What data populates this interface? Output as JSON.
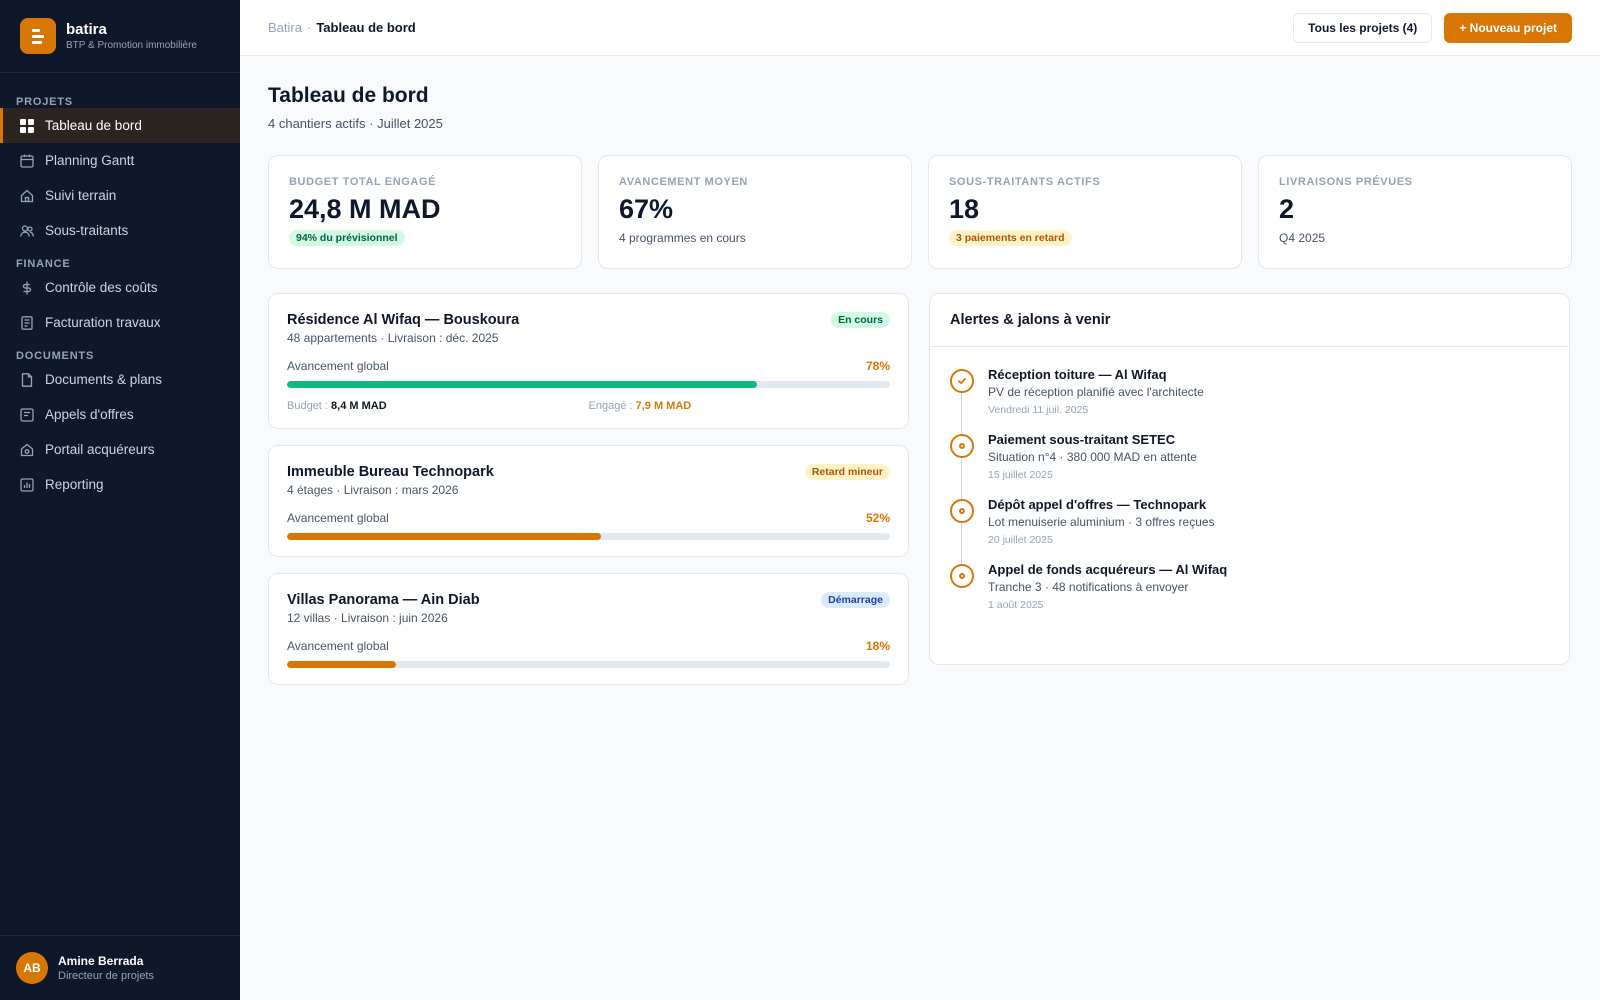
{
  "brand": {
    "name": "batira",
    "tagline": "BTP & Promotion immobilière"
  },
  "sidebar": {
    "sections": [
      {
        "title": "PROJETS",
        "items": [
          {
            "label": "Tableau de bord",
            "icon": "dashboard-icon",
            "active": true
          },
          {
            "label": "Planning Gantt",
            "icon": "calendar-icon"
          },
          {
            "label": "Suivi terrain",
            "icon": "home-icon"
          },
          {
            "label": "Sous-traitants",
            "icon": "users-icon"
          }
        ]
      },
      {
        "title": "FINANCE",
        "items": [
          {
            "label": "Contrôle des coûts",
            "icon": "dollar-icon"
          },
          {
            "label": "Facturation travaux",
            "icon": "invoice-icon"
          }
        ]
      },
      {
        "title": "DOCUMENTS",
        "items": [
          {
            "label": "Documents & plans",
            "icon": "file-icon"
          },
          {
            "label": "Appels d'offres",
            "icon": "tender-icon"
          },
          {
            "label": "Portail acquéreurs",
            "icon": "portal-icon"
          },
          {
            "label": "Reporting",
            "icon": "chart-icon"
          }
        ]
      }
    ]
  },
  "user": {
    "initials": "AB",
    "name": "Amine Berrada",
    "role": "Directeur de projets"
  },
  "header": {
    "breadcrumb_root": "Batira",
    "breadcrumb_sep": "·",
    "breadcrumb_current": "Tableau de bord",
    "all_projects_label": "Tous les projets (4)",
    "new_project_label": "+ Nouveau projet"
  },
  "page": {
    "title": "Tableau de bord",
    "subtitle": "4 chantiers actifs · Juillet 2025"
  },
  "kpis": [
    {
      "label": "BUDGET TOTAL ENGAGÉ",
      "value": "24,8 M MAD",
      "pill": "94% du prévisionnel",
      "pill_color": "#d1fae5"
    },
    {
      "label": "AVANCEMENT MOYEN",
      "value": "67%",
      "sub": "4 programmes en cours"
    },
    {
      "label": "SOUS-TRAITANTS ACTIFS",
      "value": "18",
      "pill": "3 paiements en retard",
      "pill_color": "#fef3c7"
    },
    {
      "label": "LIVRAISONS PRÉVUES",
      "value": "2",
      "sub": "Q4 2025"
    }
  ],
  "projects": [
    {
      "name": "Résidence Al Wifaq — Bouskoura",
      "meta": "48 appartements · Livraison : déc. 2025",
      "status": "En cours",
      "status_color": "#065f46",
      "progress_label": "Avancement global",
      "progress_text": "78%",
      "progress": 78,
      "bar_color": "#10b981",
      "budget_label": "Budget :",
      "budget_value": "8,4 M MAD",
      "engaged_label": "Engagé :",
      "engaged_value": "7,9 M MAD"
    },
    {
      "name": "Immeuble Bureau Technopark",
      "meta": "4 étages · Livraison : mars 2026",
      "status": "Retard mineur",
      "status_color": "#b45309",
      "progress_label": "Avancement global",
      "progress_text": "52%",
      "progress": 52,
      "bar_color": "#d97706"
    },
    {
      "name": "Villas Panorama — Ain Diab",
      "meta": "12 villas · Livraison : juin 2026",
      "status": "Démarrage",
      "status_color": "#1e40af",
      "progress_label": "Avancement global",
      "progress_text": "18%",
      "progress": 18,
      "bar_color": "#d97706"
    }
  ],
  "alerts": {
    "title": "Alertes & jalons à venir",
    "items": [
      {
        "title": "Réception toiture — Al Wifaq",
        "desc": "PV de réception planifié avec l'architecte",
        "date": "Vendredi 11 juil. 2025",
        "icon": "check-icon"
      },
      {
        "title": "Paiement sous-traitant SETEC",
        "desc": "Situation n°4 · 380 000 MAD en attente",
        "date": "15 juillet 2025",
        "icon": "circle-icon"
      },
      {
        "title": "Dépôt appel d'offres — Technopark",
        "desc": "Lot menuiserie aluminium · 3 offres reçues",
        "date": "20 juillet 2025",
        "icon": "circle-icon"
      },
      {
        "title": "Appel de fonds acquéreurs — Al Wifaq",
        "desc": "Tranche 3 · 48 notifications à envoyer",
        "date": "1 août 2025",
        "icon": "circle-icon"
      }
    ]
  }
}
